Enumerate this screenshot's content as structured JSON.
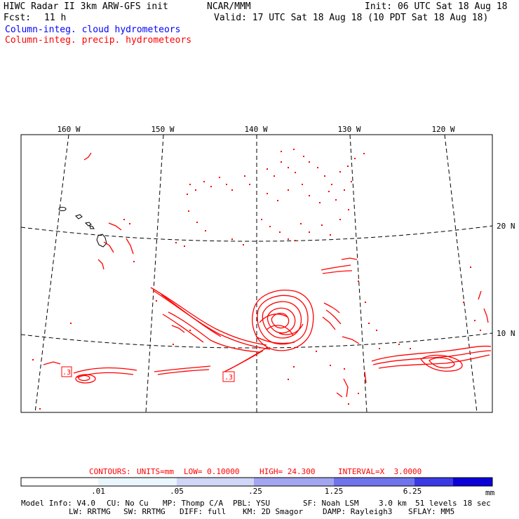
{
  "header": {
    "title": "HIWC Radar II 3km ARW-GFS init",
    "org": "NCAR/MMM",
    "init": "Init: 06 UTC Sat 18 Aug 18",
    "fcst_label": "Fcst:",
    "fcst_value": "11 h",
    "valid": "Valid: 17 UTC Sat 18 Aug 18 (10 PDT Sat 18 Aug 18)",
    "legend_cloud": "Column-integ. cloud hydrometeors",
    "legend_precip": "Column-integ. precip. hydrometeors"
  },
  "map": {
    "lon_labels": [
      "160 W",
      "150 W",
      "140 W",
      "130 W",
      "120 W"
    ],
    "lat_labels": [
      "20 N",
      "10 N"
    ],
    "contour_labels": [
      ".3",
      ".3"
    ]
  },
  "contours_line": {
    "label": "CONTOURS:",
    "units": "UNITS=mm",
    "low": "LOW= 0.10000",
    "high": "HIGH= 24.300",
    "interval": "INTERVAL=X  3.0000"
  },
  "colorbar": {
    "tick_labels": [
      ".01",
      ".05",
      ".25",
      "1.25",
      "6.25"
    ],
    "unit": "mm",
    "colors": [
      "#ffffff",
      "#e9f6fd",
      "#cfd6f6",
      "#a2a6f0",
      "#7074ec",
      "#3a3ae4",
      "#0b00d8"
    ]
  },
  "footer": {
    "line1": [
      "Model Info: V4.0",
      "CU: No Cu",
      "MP: Thomp C/A",
      "PBL: YSU",
      "SF: Noah LSM",
      "3.0 km",
      "51 levels",
      "18 sec"
    ],
    "line2": [
      "LW: RRTMG",
      "SW: RRTMG",
      "DIFF: full",
      "KM: 2D Smagor",
      "DAMP: Rayleigh3",
      "SFLAY: MM5"
    ]
  },
  "colors": {
    "cloud": "#0000ff",
    "precip": "#ff0000",
    "axis": "#000000"
  }
}
